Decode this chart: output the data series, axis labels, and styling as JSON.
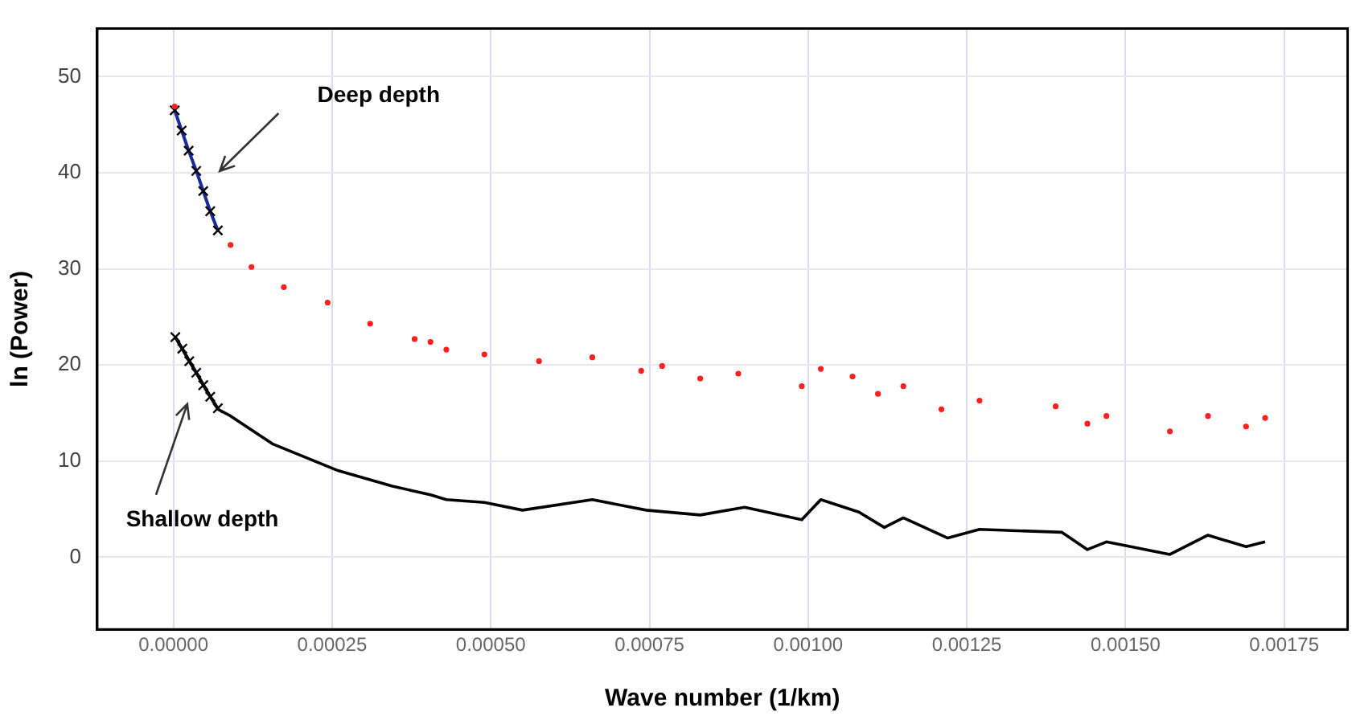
{
  "chart_data": {
    "type": "line",
    "xlabel": "Wave number (1/km)",
    "ylabel": "ln (Power)",
    "xlim": [
      -0.00012,
      0.00185
    ],
    "xticks": [
      {
        "value": 0,
        "label": "0.00000"
      },
      {
        "value": 0.00025,
        "label": "0.00025"
      },
      {
        "value": 0.0005,
        "label": "0.00050"
      },
      {
        "value": 0.00075,
        "label": "0.00075"
      },
      {
        "value": 0.001,
        "label": "0.00100"
      },
      {
        "value": 0.00125,
        "label": "0.00125"
      },
      {
        "value": 0.0015,
        "label": "0.00150"
      },
      {
        "value": 0.00175,
        "label": "0.00175"
      }
    ],
    "ylim": [
      -7.5,
      55
    ],
    "yticks": [
      0,
      10,
      20,
      30,
      40,
      50
    ],
    "grid": true,
    "legend": false,
    "series": [
      {
        "type": "scatter",
        "color": "#ff2020",
        "marker": "circle",
        "x": [
          2e-06,
          9e-05,
          0.000123,
          0.000174,
          0.000243,
          0.00031,
          0.00038,
          0.000405,
          0.00043,
          0.00049,
          0.000576,
          0.00066,
          0.000737,
          0.00077,
          0.00083,
          0.00089,
          0.00099,
          0.00102,
          0.00107,
          0.00111,
          0.00115,
          0.00121,
          0.00127,
          0.00139,
          0.00144,
          0.00147,
          0.00157,
          0.00163,
          0.00169,
          0.00172
        ],
        "values": [
          46.9,
          32.5,
          30.2,
          28.1,
          26.5,
          24.3,
          22.7,
          22.4,
          21.6,
          21.1,
          20.4,
          20.8,
          19.4,
          19.9,
          18.6,
          19.1,
          17.8,
          19.6,
          18.8,
          17.0,
          17.8,
          15.4,
          16.3,
          15.7,
          13.9,
          14.7,
          13.1,
          14.7,
          13.6,
          14.5
        ]
      },
      {
        "type": "line",
        "color": "#000000",
        "marker": "none",
        "x": [
          3e-06,
          7e-05,
          9e-05,
          0.000156,
          0.00026,
          0.000345,
          0.000405,
          0.00043,
          0.00049,
          0.00055,
          0.00066,
          0.000745,
          0.00083,
          0.0009,
          0.00099,
          0.00102,
          0.00108,
          0.00112,
          0.00115,
          0.00122,
          0.00127,
          0.0014,
          0.00144,
          0.00147,
          0.00157,
          0.00163,
          0.00169,
          0.00172
        ],
        "values": [
          22.9,
          15.4,
          14.7,
          11.8,
          9.0,
          7.4,
          6.5,
          6.0,
          5.7,
          4.9,
          6.0,
          4.9,
          4.4,
          5.2,
          3.9,
          6.0,
          4.7,
          3.1,
          4.1,
          2.0,
          2.9,
          2.6,
          0.8,
          1.6,
          0.3,
          2.3,
          1.1,
          1.6
        ]
      },
      {
        "type": "line",
        "color": "#1a2a9c",
        "marker": "cross",
        "x": [
          2e-06,
          1.3e-05,
          2.4e-05,
          3.6e-05,
          4.7e-05,
          5.8e-05,
          7e-05
        ],
        "values": [
          46.5,
          44.4,
          42.3,
          40.2,
          38.1,
          36.0,
          34.0
        ]
      },
      {
        "type": "line",
        "color": "#1a2a9c",
        "marker": "cross",
        "x": [
          3e-06,
          1.4e-05,
          2.5e-05,
          3.6e-05,
          4.7e-05,
          5.8e-05,
          7e-05
        ],
        "values": [
          22.9,
          21.7,
          20.4,
          19.2,
          17.9,
          16.7,
          15.5
        ]
      }
    ],
    "annotations": [
      "Deep depth",
      "Shallow depth"
    ]
  }
}
